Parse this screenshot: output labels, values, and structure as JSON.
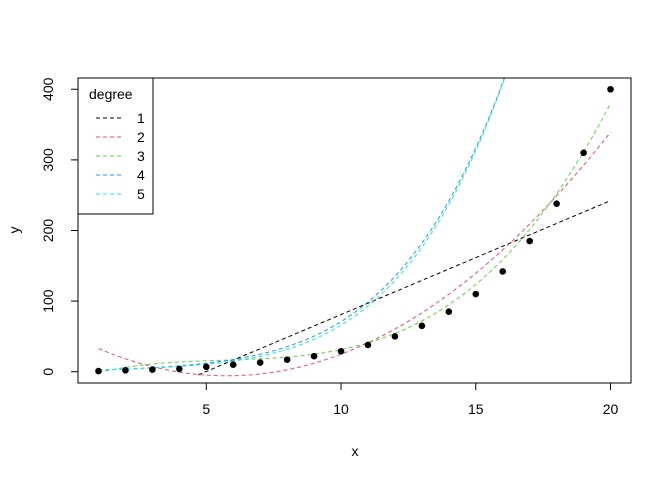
{
  "chart_data": {
    "type": "scatter",
    "xlabel": "x",
    "ylabel": "y",
    "xlim": [
      0.24,
      20.76
    ],
    "ylim": [
      -15.96,
      415.96
    ],
    "x_ticks": [
      5,
      10,
      15,
      20
    ],
    "y_ticks": [
      0,
      100,
      200,
      300,
      400
    ],
    "grid": false,
    "points": {
      "x": [
        1,
        2,
        3,
        4,
        5,
        6,
        7,
        8,
        9,
        10,
        11,
        12,
        13,
        14,
        15,
        16,
        17,
        18,
        19,
        20
      ],
      "y": [
        1,
        2,
        3,
        4,
        7,
        10,
        13,
        17,
        22,
        29,
        38,
        50,
        65,
        85,
        110,
        142,
        185,
        238,
        310,
        400
      ]
    },
    "fits": {
      "x_start": 1,
      "x_end": 20,
      "steps": 200,
      "domain_x": [
        4.7,
        20
      ],
      "series": [
        {
          "name": "1",
          "color": "#000000",
          "coef": [
            -80.3158,
            16.12782
          ]
        },
        {
          "name": "2",
          "color": "#DF536B",
          "coef": [
            50.7351,
            -19.6141,
            1.70198
          ]
        },
        {
          "name": "3",
          "color": "#61D04F",
          "coef": [
            -11.7982,
            12.4476,
            -1.98309,
            0.117
          ]
        },
        {
          "name": "4",
          "color": "#2297E6",
          "coef": [
            2.0,
            0.1,
            0.5,
            -0.065,
            0.0083
          ]
        },
        {
          "name": "5",
          "color": "#28E2E5",
          "coef": [
            0.9,
            1.2,
            0.1,
            -0.02,
            0.0055,
            8e-05
          ]
        }
      ]
    },
    "legend": {
      "title": "degree",
      "placement": "top-left",
      "entries": [
        "1",
        "2",
        "3",
        "4",
        "5"
      ]
    }
  }
}
